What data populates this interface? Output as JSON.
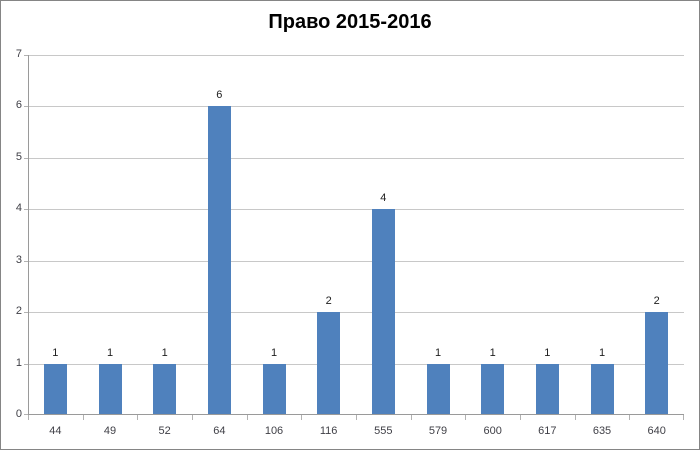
{
  "window": {
    "background": "#ffffff",
    "border_color": "#858585"
  },
  "chart_data": {
    "type": "bar",
    "title": "Право 2015-2016",
    "categories": [
      "44",
      "49",
      "52",
      "64",
      "106",
      "116",
      "555",
      "579",
      "600",
      "617",
      "635",
      "640"
    ],
    "values": [
      1,
      1,
      1,
      6,
      1,
      2,
      4,
      1,
      1,
      1,
      1,
      2
    ],
    "xlabel": "",
    "ylabel": "",
    "ylim": [
      0,
      7
    ],
    "yticks": [
      "0",
      "1",
      "2",
      "3",
      "4",
      "5",
      "6",
      "7"
    ],
    "grid": "horizontal",
    "legend": "none",
    "data_labels": true,
    "colors": {
      "bar": "#4f81bd",
      "gridline": "#c8c8c8",
      "axis": "#9a9a9a",
      "tick": "#b2b2b2",
      "axis_label": "#3f3f46",
      "data_label": "#202020",
      "title": "#000000"
    }
  }
}
